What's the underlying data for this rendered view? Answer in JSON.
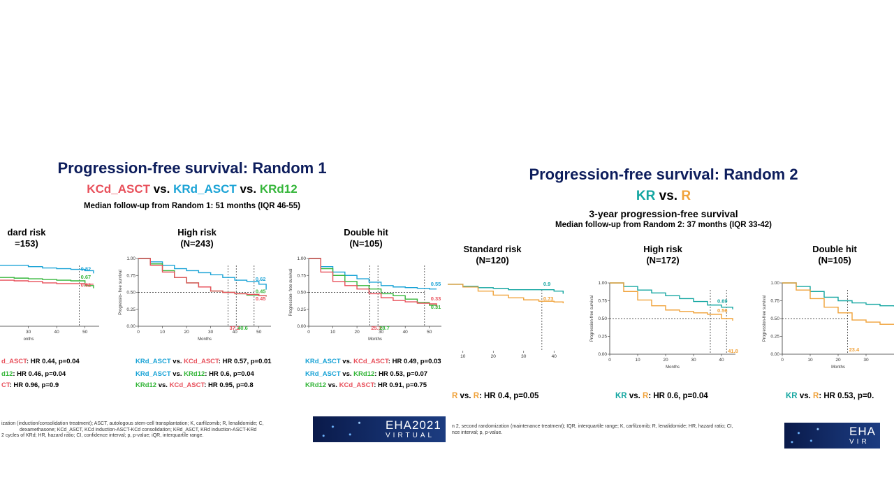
{
  "left": {
    "title": "Progression-free survival: Random 1",
    "subtitle": {
      "a": "KCd_ASCT",
      "vs1": " vs. ",
      "b": "KRd_ASCT",
      "vs2": " vs. ",
      "c": "KRd12"
    },
    "follow_up": "Median follow-up from Random 1: 51 months (IQR 46-55)",
    "groups": [
      {
        "name": "dard risk",
        "n": "=153)"
      },
      {
        "name": "High risk",
        "n": "(N=243)"
      },
      {
        "name": "Double hit",
        "n": "(N=105)"
      }
    ],
    "hr_lines": [
      [
        {
          "a": "d_ASCT",
          "b": ": HR 0.44, p=0.04"
        },
        {
          "a": "d12",
          "b": ": HR 0.46, p=0.04"
        },
        {
          "a": "CT",
          "b": ": HR 0.96, p=0.9"
        }
      ],
      [
        {
          "a": "KRd_ASCT",
          "vs": " vs. ",
          "b": "KCd_ASCT",
          "rest": ": HR 0.57, p=0.01"
        },
        {
          "a": "KRd_ASCT",
          "vs": " vs. ",
          "b": "KRd12",
          "rest": ": HR 0.6, p=0.04"
        },
        {
          "a": "KRd12",
          "vs": " vs. ",
          "b": "KCd_ASCT",
          "rest": ": HR 0.95, p=0.8"
        }
      ],
      [
        {
          "a": "KRd_ASCT",
          "vs": " vs. ",
          "b": "KCd_ASCT",
          "rest": ": HR 0.49, p=0.03"
        },
        {
          "a": "KRd_ASCT",
          "vs": " vs. ",
          "b": "KRd12",
          "rest": ": HR 0.53, p=0.07"
        },
        {
          "a": "KRd12",
          "vs": " vs. ",
          "b": "KCd_ASCT",
          "rest": ": HR 0.91, p=0.75"
        }
      ]
    ],
    "footnote": [
      "ization (induction/consolidation treatment); ASCT, autologous stem-cell transplantation; K, carfilzomib; R, lenalidomide; C,",
      "dexamethasone; KCd_ASCT, KCd induction-ASCT-KCd consolidation; KRd_ASCT, KRd induction-ASCT-KRd",
      "2 cycles of KRd; HR, hazard ratio; CI, confidence interval; p, p-value; iQR, interquartile range."
    ],
    "banner": {
      "line1": "EHA2021",
      "line2": "VIRTUAL"
    }
  },
  "right": {
    "title": "Progression-free survival: Random 2",
    "subtitle": {
      "a": "KR",
      "vs": " vs. ",
      "b": "R"
    },
    "subtitle2": "3-year progression-free survival",
    "follow_up": "Median follow-up from Random 2: 37 months (IQR 33-42)",
    "groups": [
      {
        "name": "Standard risk",
        "n": "(N=120)"
      },
      {
        "name": "High risk",
        "n": "(N=172)"
      },
      {
        "name": "Double hit",
        "n": "(N=105)"
      }
    ],
    "hr_lines": [
      {
        "a": "R",
        "vs": " vs. ",
        "b": "R",
        "rest": ": HR 0.4, p=0.05"
      },
      {
        "a": "KR",
        "vs": " vs. ",
        "b": "R",
        "rest": ": HR 0.6, p=0.04"
      },
      {
        "a": "KR",
        "vs": " vs. ",
        "b": "R",
        "rest": ": HR 0.53, p=0."
      }
    ],
    "footnote": [
      "n 2, second randomization (maintenance treatment); IQR, interquartile range; K, carfilzomib; R, lenalidomide; HR, hazard ratio; CI,",
      "nce interval; p, p-value."
    ],
    "banner": {
      "line1": "EHA",
      "line2": "VIR"
    }
  },
  "colors": {
    "KCd_ASCT": "#e8505b",
    "KRd_ASCT": "#1aa3d6",
    "KRd12": "#35b63a",
    "KR": "#14a6a1",
    "R": "#f0a23a"
  },
  "chart_data": [
    {
      "type": "line",
      "panel": "left",
      "group": "dard risk",
      "xlabel": "onths",
      "ylabel": "",
      "xlim": [
        20,
        55
      ],
      "ylim": [
        0,
        1
      ],
      "xticks": [
        30,
        40,
        50
      ],
      "series": [
        {
          "name": "KRd_ASCT",
          "x": [
            20,
            25,
            30,
            35,
            40,
            45,
            50,
            53
          ],
          "y": [
            0.9,
            0.9,
            0.88,
            0.86,
            0.85,
            0.84,
            0.82,
            0.78
          ]
        },
        {
          "name": "KRd12",
          "x": [
            20,
            25,
            30,
            35,
            40,
            45,
            50,
            53
          ],
          "y": [
            0.72,
            0.71,
            0.7,
            0.69,
            0.68,
            0.67,
            0.6,
            0.56
          ]
        },
        {
          "name": "KCd_ASCT",
          "x": [
            20,
            25,
            30,
            35,
            40,
            45,
            50,
            53
          ],
          "y": [
            0.68,
            0.67,
            0.66,
            0.64,
            0.63,
            0.63,
            0.62,
            0.62
          ]
        }
      ],
      "annotations": [
        {
          "text": "0.82",
          "series": "KRd_ASCT",
          "x": 48,
          "y": 0.82
        },
        {
          "text": "0.67",
          "series": "KRd12",
          "x": 48,
          "y": 0.7
        },
        {
          "text": "0.62",
          "series": "KCd_ASCT",
          "x": 48,
          "y": 0.58
        }
      ],
      "vlines": [
        48
      ]
    },
    {
      "type": "line",
      "panel": "left",
      "group": "High risk",
      "xlabel": "Months",
      "ylabel": "Progressio- free survival",
      "xlim": [
        0,
        55
      ],
      "ylim": [
        0,
        1
      ],
      "xticks": [
        0,
        10,
        20,
        30,
        40,
        50
      ],
      "yticks": [
        0,
        0.25,
        0.5,
        0.75,
        1
      ],
      "ytick_labels": [
        "0.00",
        "0.25",
        "0.50",
        "0.75",
        "1.00"
      ],
      "series": [
        {
          "name": "KRd_ASCT",
          "x": [
            0,
            5,
            10,
            15,
            20,
            25,
            30,
            35,
            40,
            45,
            50,
            53
          ],
          "y": [
            1,
            0.95,
            0.9,
            0.85,
            0.82,
            0.79,
            0.76,
            0.72,
            0.68,
            0.66,
            0.62,
            0.54
          ]
        },
        {
          "name": "KRd12",
          "x": [
            0,
            5,
            10,
            15,
            20,
            25,
            30,
            35,
            40,
            45,
            50,
            53
          ],
          "y": [
            1,
            0.92,
            0.82,
            0.72,
            0.64,
            0.58,
            0.52,
            0.5,
            0.48,
            0.46,
            0.45,
            0.44
          ]
        },
        {
          "name": "KCd_ASCT",
          "x": [
            0,
            5,
            10,
            15,
            20,
            25,
            30,
            35,
            40,
            45,
            50,
            53
          ],
          "y": [
            1,
            0.9,
            0.8,
            0.72,
            0.64,
            0.58,
            0.52,
            0.5,
            0.48,
            0.47,
            0.45,
            0.44
          ]
        }
      ],
      "annotations": [
        {
          "text": "0.62",
          "series": "KRd_ASCT",
          "x": 48,
          "y": 0.67
        },
        {
          "text": "0.45",
          "series": "KRd12",
          "x": 48,
          "y": 0.49
        },
        {
          "text": "0.45",
          "series": "KCd_ASCT",
          "x": 48,
          "y": 0.38
        },
        {
          "text": "37.2",
          "series": "KCd_ASCT",
          "x": 37.2,
          "y": -0.05
        },
        {
          "text": "40.6",
          "series": "KRd12",
          "x": 40.6,
          "y": -0.05
        }
      ],
      "hline": 0.5,
      "vlines": [
        37.2,
        40.6,
        48
      ]
    },
    {
      "type": "line",
      "panel": "left",
      "group": "Double hit",
      "xlabel": "Months",
      "ylabel": "Progression- free survival",
      "xlim": [
        0,
        55
      ],
      "ylim": [
        0,
        1
      ],
      "xticks": [
        0,
        10,
        20,
        30,
        40,
        50
      ],
      "yticks": [
        0,
        0.25,
        0.5,
        0.75,
        1
      ],
      "ytick_labels": [
        "0.00",
        "0.25",
        "0.50",
        "0.75",
        "1.00"
      ],
      "series": [
        {
          "name": "KRd_ASCT",
          "x": [
            0,
            5,
            10,
            15,
            20,
            25,
            30,
            35,
            40,
            45,
            50,
            53
          ],
          "y": [
            1,
            0.88,
            0.8,
            0.75,
            0.7,
            0.65,
            0.6,
            0.58,
            0.57,
            0.56,
            0.55,
            0.55
          ]
        },
        {
          "name": "KRd12",
          "x": [
            0,
            5,
            10,
            15,
            20,
            25,
            30,
            35,
            40,
            45,
            50,
            53
          ],
          "y": [
            1,
            0.85,
            0.75,
            0.66,
            0.6,
            0.55,
            0.48,
            0.45,
            0.4,
            0.35,
            0.31,
            0.31
          ]
        },
        {
          "name": "KCd_ASCT",
          "x": [
            0,
            5,
            10,
            15,
            20,
            25,
            30,
            35,
            40,
            45,
            50,
            53
          ],
          "y": [
            1,
            0.8,
            0.66,
            0.6,
            0.55,
            0.48,
            0.42,
            0.38,
            0.36,
            0.34,
            0.33,
            0.28
          ]
        }
      ],
      "annotations": [
        {
          "text": "0.55",
          "series": "KRd_ASCT",
          "x": 50,
          "y": 0.6
        },
        {
          "text": "0.33",
          "series": "KCd_ASCT",
          "x": 50,
          "y": 0.38
        },
        {
          "text": "0.31",
          "series": "KRd12",
          "x": 50,
          "y": 0.26
        },
        {
          "text": "25.3",
          "series": "KCd_ASCT",
          "x": 25.3,
          "y": -0.05
        },
        {
          "text": "28.7",
          "series": "KRd12",
          "x": 28.7,
          "y": -0.05
        }
      ],
      "hline": 0.5,
      "vlines": [
        25.3,
        28.7,
        48
      ]
    },
    {
      "type": "line",
      "panel": "right",
      "group": "Standard risk",
      "xlabel": "",
      "ylabel": "",
      "xlim": [
        5,
        45
      ],
      "ylim": [
        0,
        1
      ],
      "xticks": [
        10,
        20,
        30,
        40
      ],
      "series": [
        {
          "name": "KR",
          "x": [
            5,
            10,
            15,
            20,
            25,
            30,
            35,
            40,
            43
          ],
          "y": [
            0.98,
            0.95,
            0.93,
            0.92,
            0.9,
            0.9,
            0.9,
            0.88,
            0.84
          ]
        },
        {
          "name": "R",
          "x": [
            5,
            10,
            15,
            20,
            25,
            30,
            35,
            40,
            43
          ],
          "y": [
            0.98,
            0.94,
            0.88,
            0.82,
            0.78,
            0.75,
            0.73,
            0.72,
            0.7
          ]
        }
      ],
      "annotations": [
        {
          "text": "0.9",
          "series": "KR",
          "x": 36,
          "y": 0.96
        },
        {
          "text": "0.73",
          "series": "R",
          "x": 36,
          "y": 0.74
        }
      ],
      "vlines": [
        36
      ]
    },
    {
      "type": "line",
      "panel": "right",
      "group": "High risk",
      "xlabel": "Months",
      "ylabel": "Progression-free survival",
      "xlim": [
        0,
        45
      ],
      "ylim": [
        0,
        1
      ],
      "xticks": [
        0,
        10,
        20,
        30,
        40
      ],
      "yticks": [
        0,
        0.25,
        0.5,
        0.75,
        1
      ],
      "ytick_labels": [
        "0.00",
        "0.25",
        "0.50",
        "0.75",
        "1.00"
      ],
      "series": [
        {
          "name": "KR",
          "x": [
            0,
            5,
            10,
            15,
            20,
            25,
            30,
            35,
            40,
            44
          ],
          "y": [
            1,
            0.95,
            0.9,
            0.86,
            0.82,
            0.78,
            0.74,
            0.69,
            0.66,
            0.63
          ]
        },
        {
          "name": "R",
          "x": [
            0,
            5,
            10,
            15,
            20,
            25,
            30,
            35,
            40,
            44
          ],
          "y": [
            1,
            0.88,
            0.76,
            0.68,
            0.62,
            0.6,
            0.58,
            0.56,
            0.5,
            0.47
          ]
        }
      ],
      "annotations": [
        {
          "text": "0.69",
          "series": "KR",
          "x": 38,
          "y": 0.72
        },
        {
          "text": "0.56",
          "series": "R",
          "x": 38,
          "y": 0.59
        },
        {
          "text": "41.8",
          "series": "R",
          "x": 41.8,
          "y": 0.02
        }
      ],
      "hline": 0.5,
      "vlines": [
        36,
        41.8
      ]
    },
    {
      "type": "line",
      "panel": "right",
      "group": "Double hit",
      "xlabel": "Months",
      "ylabel": "Progression-free survival",
      "xlim": [
        0,
        40
      ],
      "ylim": [
        0,
        1
      ],
      "xticks": [
        0,
        10,
        20,
        30
      ],
      "yticks": [
        0,
        0.25,
        0.5,
        0.75,
        1
      ],
      "ytick_labels": [
        "0.00",
        "0.25",
        "0.50",
        "0.75",
        "1.00"
      ],
      "series": [
        {
          "name": "KR",
          "x": [
            0,
            5,
            10,
            15,
            20,
            25,
            30,
            35,
            40
          ],
          "y": [
            1,
            0.95,
            0.88,
            0.8,
            0.75,
            0.72,
            0.7,
            0.68,
            0.67
          ]
        },
        {
          "name": "R",
          "x": [
            0,
            5,
            10,
            15,
            20,
            25,
            30,
            35,
            40
          ],
          "y": [
            1,
            0.9,
            0.78,
            0.66,
            0.58,
            0.48,
            0.45,
            0.42,
            0.42
          ]
        }
      ],
      "annotations": [
        {
          "text": "23.4",
          "series": "R",
          "x": 23.4,
          "y": 0.04
        }
      ],
      "hline": 0.5,
      "vlines": [
        23.4
      ]
    }
  ]
}
